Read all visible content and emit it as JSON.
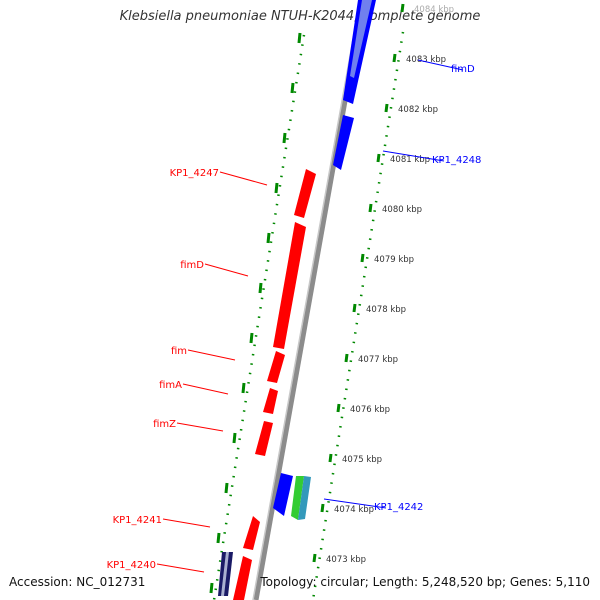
{
  "title": "Klebsiella pneumoniae NTUH-K2044, complete genome",
  "footer": {
    "accession": "Accession: NC_012731",
    "summary": "Topology: circular; Length: 5,248,520 bp; Genes: 5,110"
  },
  "colors": {
    "reverse_gene": "#ff0000",
    "forward_gene": "#0000ff",
    "backbone": "#8c8c8c",
    "tick": "#008800",
    "other_green": "#33cc33",
    "other_teal": "#3399bb"
  },
  "chart_data": {
    "type": "genome-map",
    "scale_labels": [
      "4084 kbp",
      "4083 kbp",
      "4082 kbp",
      "4081 kbp",
      "4080 kbp",
      "4079 kbp",
      "4078 kbp",
      "4077 kbp",
      "4076 kbp",
      "4075 kbp",
      "4074 kbp",
      "4073 kbp"
    ],
    "reverse_labels": [
      "KP1_4247",
      "fimD",
      "fim",
      "fimA",
      "fimZ",
      "KP1_4241",
      "KP1_4240"
    ],
    "forward_labels": [
      "fimD",
      "KP1_4248",
      "KP1_4242"
    ]
  }
}
